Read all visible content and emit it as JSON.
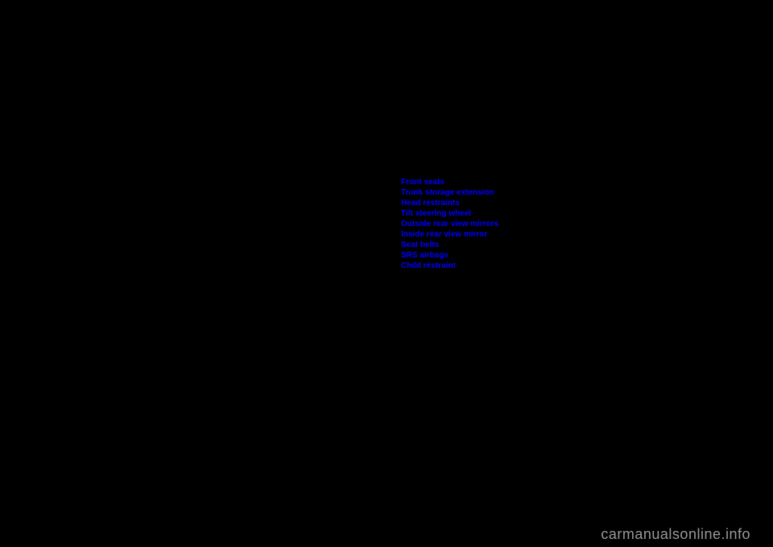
{
  "toc": {
    "items": [
      {
        "label": "Front seats"
      },
      {
        "label": "Trunk storage extension"
      },
      {
        "label": "Head restraints"
      },
      {
        "label": "Tilt steering wheel"
      },
      {
        "label": "Outside rear view mirrors"
      },
      {
        "label": "Inside rear view mirror"
      },
      {
        "label": "Seat belts"
      },
      {
        "label": "SRS airbags"
      },
      {
        "label": "Child restraint"
      }
    ]
  },
  "watermark": {
    "text": "carmanualsonline.info"
  }
}
